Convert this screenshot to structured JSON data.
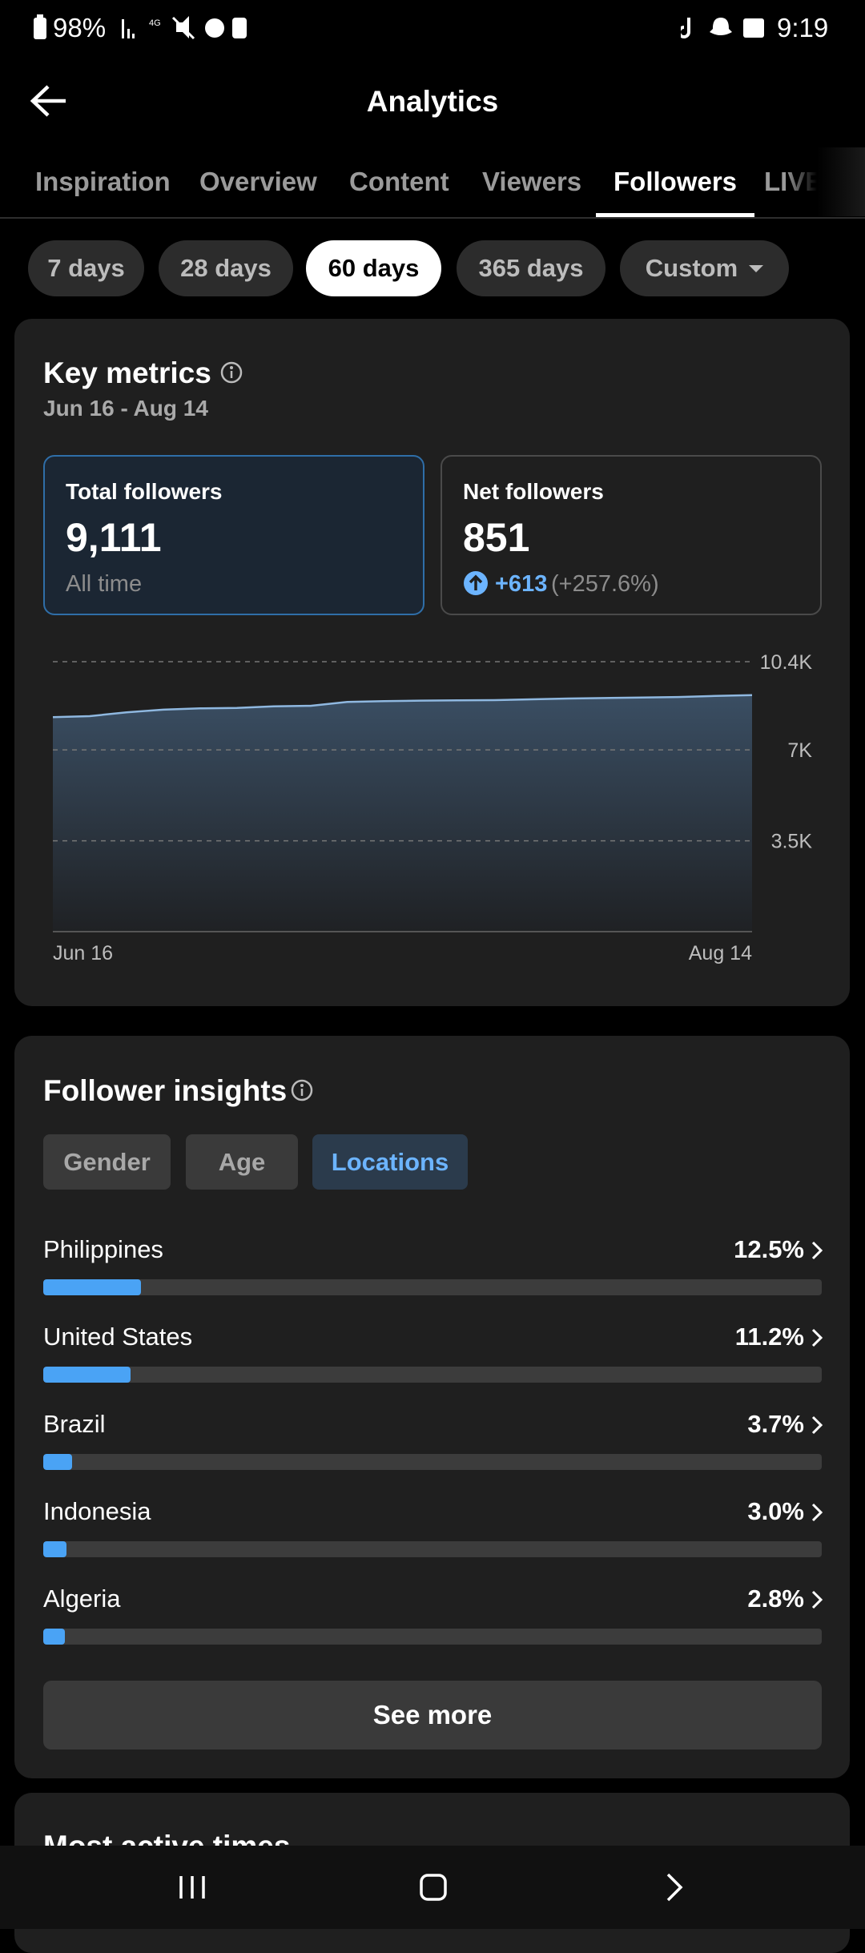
{
  "status_bar": {
    "battery": "98%",
    "time": "9:19"
  },
  "header": {
    "title": "Analytics"
  },
  "tabs": {
    "items": [
      "Inspiration",
      "Overview",
      "Content",
      "Viewers",
      "Followers",
      "LIVE"
    ],
    "selected": 4
  },
  "ranges": {
    "items": [
      "7 days",
      "28 days",
      "60 days",
      "365 days",
      "Custom"
    ],
    "selected": 2
  },
  "key_metrics": {
    "title": "Key metrics",
    "date_range": "Jun 16 - Aug 14",
    "total": {
      "label": "Total followers",
      "value": "9,111",
      "note": "All time"
    },
    "net": {
      "label": "Net followers",
      "value": "851",
      "change": "+613",
      "change_pct": "(+257.6%)"
    }
  },
  "chart_data": {
    "type": "area",
    "categories": [
      "Jun 16",
      null,
      null,
      null,
      null,
      null,
      null,
      null,
      null,
      null,
      null,
      null,
      null,
      null,
      null,
      null,
      null,
      null,
      null,
      "Aug 14"
    ],
    "values": [
      8260,
      8300,
      8450,
      8550,
      8600,
      8620,
      8680,
      8700,
      8850,
      8880,
      8900,
      8910,
      8920,
      8950,
      8980,
      9000,
      9020,
      9040,
      9080,
      9111
    ],
    "color": "#8fb8e0",
    "ylim": [
      0,
      10400
    ],
    "yticks": [
      {
        "value": 3500,
        "label": "3.5K"
      },
      {
        "value": 7000,
        "label": "7K"
      },
      {
        "value": 10400,
        "label": "10.4K"
      }
    ],
    "grid": true
  },
  "insights": {
    "title": "Follower insights",
    "filters": [
      "Gender",
      "Age",
      "Locations"
    ],
    "selected": 2,
    "locations": {
      "names": [
        "Philippines",
        "United States",
        "Brazil",
        "Indonesia",
        "Algeria"
      ],
      "values": [
        12.5,
        11.2,
        3.7,
        3.0,
        2.8
      ],
      "value_labels": [
        "12.5%",
        "11.2%",
        "3.7%",
        "3.0%",
        "2.8%"
      ],
      "xlim": [
        0,
        100
      ]
    },
    "button": "See more"
  },
  "next_section": {
    "title": "Most active times"
  }
}
